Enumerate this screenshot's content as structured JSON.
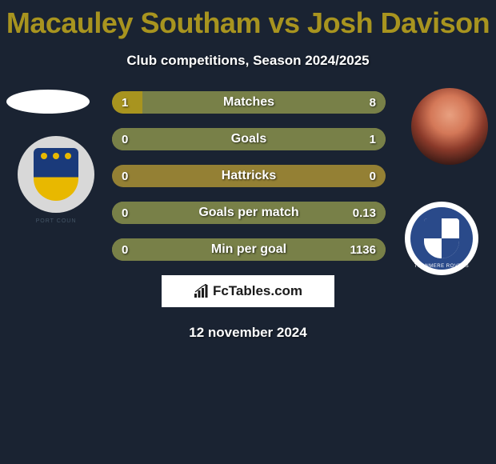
{
  "title_color": "#a8941f",
  "player1_name": "Macauley Southam",
  "vs_text": "vs",
  "player2_name": "Josh Davison",
  "subtitle": "Club competitions, Season 2024/2025",
  "date": "12 november 2024",
  "brand": "FcTables.com",
  "bars": {
    "track_color": "#948034",
    "left_fill_color": "#a8941f",
    "right_fill_color": "#788048",
    "rows": [
      {
        "label": "Matches",
        "left_val": "1",
        "right_val": "8",
        "left_pct": 11,
        "right_pct": 89
      },
      {
        "label": "Goals",
        "left_val": "0",
        "right_val": "1",
        "left_pct": 0,
        "right_pct": 100
      },
      {
        "label": "Hattricks",
        "left_val": "0",
        "right_val": "0",
        "left_pct": 0,
        "right_pct": 0
      },
      {
        "label": "Goals per match",
        "left_val": "0",
        "right_val": "0.13",
        "left_pct": 0,
        "right_pct": 100
      },
      {
        "label": "Min per goal",
        "left_val": "0",
        "right_val": "1136",
        "left_pct": 0,
        "right_pct": 100
      }
    ]
  },
  "crest_left_label": "PORT COUN",
  "crest_right_label": "TRANMERE ROVERS"
}
